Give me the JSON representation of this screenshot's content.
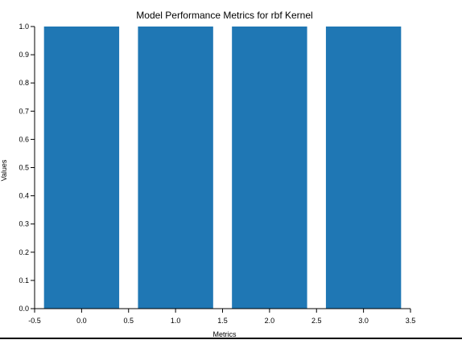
{
  "chart_data": {
    "type": "bar",
    "title": "Model Performance Metrics for rbf Kernel",
    "xlabel": "Metrics",
    "ylabel": "Values",
    "x": [
      0,
      1,
      2,
      3
    ],
    "values": [
      1.0,
      1.0,
      1.0,
      1.0
    ],
    "bar_width": 0.8,
    "xlim": [
      -0.5,
      3.5
    ],
    "ylim": [
      0,
      1.0
    ],
    "x_ticks": [
      "-0.5",
      "0.0",
      "0.5",
      "1.0",
      "1.5",
      "2.0",
      "2.5",
      "3.0",
      "3.5"
    ],
    "y_ticks": [
      "0.0",
      "0.1",
      "0.2",
      "0.3",
      "0.4",
      "0.5",
      "0.6",
      "0.7",
      "0.8",
      "0.9",
      "1.0"
    ],
    "grid": false,
    "color": "#1f77b4"
  }
}
